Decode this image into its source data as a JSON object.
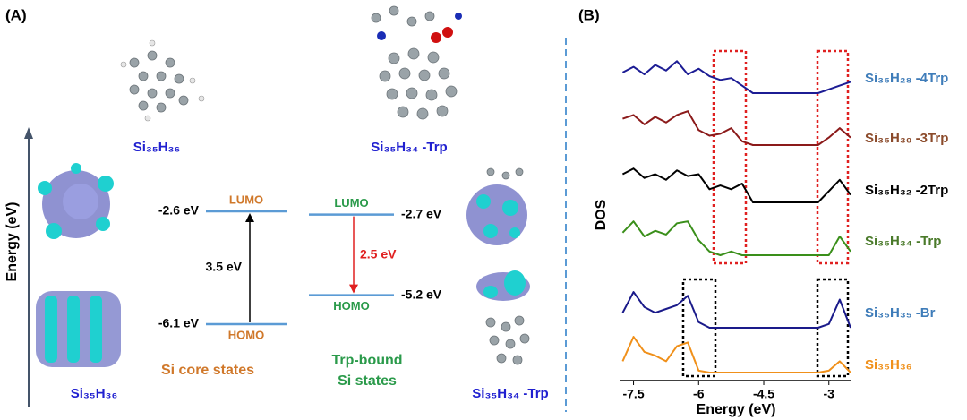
{
  "panel_a": {
    "label": "(A)",
    "axis_label": "Energy (eV)",
    "core": {
      "structure_top": "Si₃₅H₃₆",
      "structure_bottom": "Si₃₅H₃₆",
      "lumo": {
        "label": "LUMO",
        "energy": -2.6,
        "energy_label": "-2.6 eV"
      },
      "homo": {
        "label": "HOMO",
        "energy": -6.1,
        "energy_label": "-6.1 eV"
      },
      "gap_label": "3.5 eV",
      "caption": "Si core states"
    },
    "trp": {
      "structure_top": "Si₃₅H₃₄ -Trp",
      "structure_bottom": "Si₃₅H₃₄ -Trp",
      "lumo": {
        "label": "LUMO",
        "energy": -2.7,
        "energy_label": "-2.7 eV"
      },
      "homo": {
        "label": "HOMO",
        "energy": -5.2,
        "energy_label": "-5.2 eV"
      },
      "gap_label": "2.5 eV",
      "caption": [
        "Trp-bound",
        "Si states"
      ]
    }
  },
  "chart_data": {
    "type": "line",
    "panel_label": "(B)",
    "y_label": "DOS",
    "x_label": "Energy (eV)",
    "xlim": [
      -7.8,
      -2.5
    ],
    "xticks": [
      -7.5,
      -6.0,
      -4.5,
      -3.0
    ],
    "x": [
      -7.75,
      -7.5,
      -7.25,
      -7.0,
      -6.75,
      -6.5,
      -6.25,
      -6.0,
      -5.75,
      -5.5,
      -5.25,
      -5.0,
      -4.75,
      -4.5,
      -4.25,
      -4.0,
      -3.75,
      -3.5,
      -3.25,
      -3.0,
      -2.75,
      -2.5
    ],
    "series": [
      {
        "name": "Si₃₅H₂₈ -4Trp",
        "color": "#1c1c94",
        "label_color": "#3e7cb9",
        "values": [
          0.55,
          0.7,
          0.5,
          0.75,
          0.6,
          0.85,
          0.5,
          0.65,
          0.45,
          0.35,
          0.4,
          0.2,
          0,
          0,
          0,
          0,
          0,
          0,
          0,
          0.1,
          0.2,
          0.3
        ]
      },
      {
        "name": "Si₃₅H₃₀ -3Trp",
        "color": "#8b1a1a",
        "label_color": "#8b4a2a",
        "values": [
          0.7,
          0.8,
          0.55,
          0.75,
          0.6,
          0.8,
          0.9,
          0.4,
          0.25,
          0.3,
          0.45,
          0.1,
          0,
          0,
          0,
          0,
          0,
          0,
          0,
          0.2,
          0.45,
          0.2
        ]
      },
      {
        "name": "Si₃₅H₃₂ -2Trp",
        "color": "#000000",
        "label_color": "#000000",
        "values": [
          0.75,
          0.9,
          0.65,
          0.75,
          0.6,
          0.85,
          0.7,
          0.75,
          0.35,
          0.45,
          0.35,
          0.5,
          0,
          0,
          0,
          0,
          0,
          0,
          0,
          0.3,
          0.6,
          0.2
        ]
      },
      {
        "name": "Si₃₅H₃₄ -Trp",
        "color": "#3a8f1a",
        "label_color": "#4a7a2a",
        "values": [
          0.6,
          0.9,
          0.5,
          0.65,
          0.55,
          0.85,
          0.9,
          0.4,
          0.1,
          0,
          0.1,
          0,
          0,
          0,
          0,
          0,
          0,
          0,
          0,
          0,
          0.5,
          0.1
        ]
      },
      {
        "name": "Si₃₅H₃₅ -Br",
        "color": "#1a1a8a",
        "label_color": "#3e7cb9",
        "values": [
          0.4,
          0.95,
          0.55,
          0.4,
          0.5,
          0.6,
          0.85,
          0.15,
          0,
          0,
          0,
          0,
          0,
          0,
          0,
          0,
          0,
          0,
          0,
          0.1,
          0.75,
          0
        ]
      },
      {
        "name": "Si₃₅H₃₆",
        "color": "#f0901a",
        "label_color": "#f0901a",
        "values": [
          0.3,
          0.95,
          0.55,
          0.45,
          0.3,
          0.7,
          0.8,
          0.05,
          0,
          0,
          0,
          0,
          0,
          0,
          0,
          0,
          0,
          0,
          0,
          0.05,
          0.3,
          0
        ]
      }
    ]
  }
}
